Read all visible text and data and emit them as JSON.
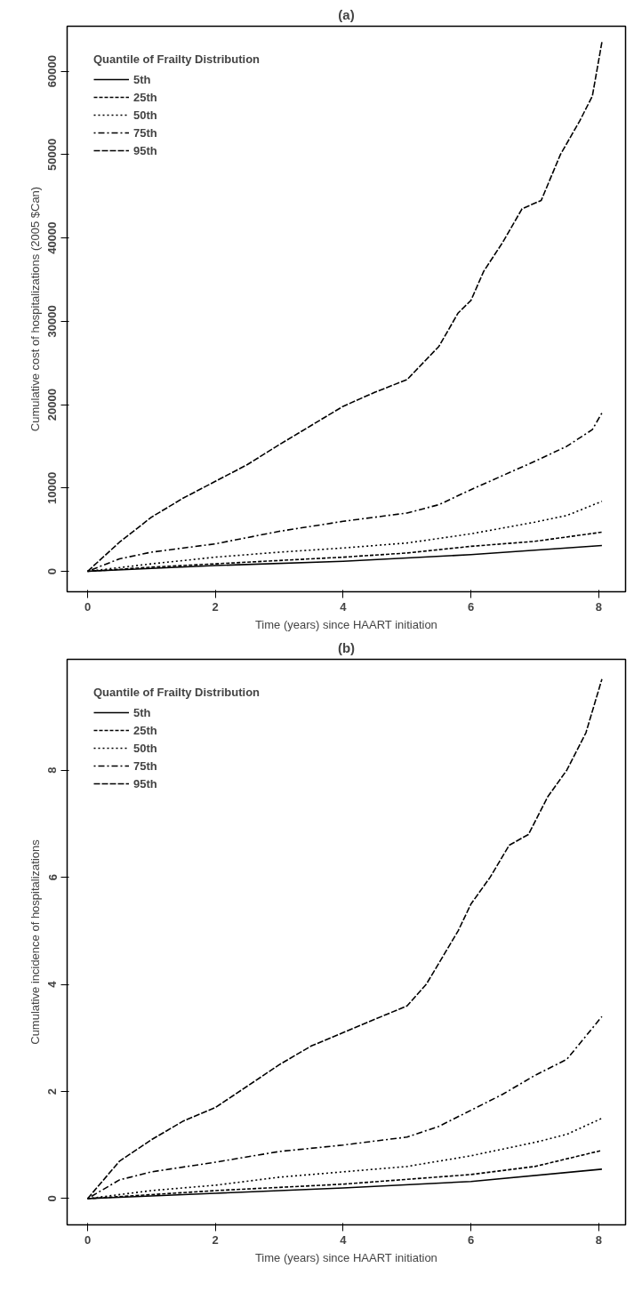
{
  "chart_data": [
    {
      "type": "line",
      "title": "(a)",
      "xlabel": "Time (years) since HAART initiation",
      "ylabel": "Cumulative cost of hospitalizations (2005 $Can)",
      "legend_title": "Quantile of Frailty Distribution",
      "legend": "top left",
      "grid": false,
      "xlim": [
        -0.32,
        8.42
      ],
      "xticks": [
        0,
        2,
        4,
        6,
        8
      ],
      "ylim": [
        -2450,
        65400
      ],
      "yticks": [
        0,
        10000,
        20000,
        30000,
        40000,
        50000,
        60000
      ],
      "series": [
        {
          "name": "5th",
          "color": "#000000",
          "line_style": "solid",
          "x": [
            0,
            2,
            4,
            6,
            8.05
          ],
          "values": [
            0,
            700,
            1200,
            2000,
            3100
          ]
        },
        {
          "name": "25th",
          "color": "#000000",
          "line_style": "dashed",
          "x": [
            0,
            1,
            2,
            3,
            4,
            5,
            6,
            7,
            8.05
          ],
          "values": [
            0,
            500,
            900,
            1300,
            1700,
            2200,
            3000,
            3600,
            4700
          ]
        },
        {
          "name": "50th",
          "color": "#000000",
          "line_style": "dotted",
          "x": [
            0,
            1,
            2,
            3,
            4,
            5,
            6,
            7,
            7.5,
            8.05
          ],
          "values": [
            0,
            900,
            1700,
            2300,
            2800,
            3400,
            4500,
            5900,
            6700,
            8400
          ]
        },
        {
          "name": "75th",
          "color": "#000000",
          "line_style": "dotdash",
          "x": [
            0,
            0.5,
            1,
            2,
            3,
            4,
            5,
            5.5,
            6,
            6.5,
            7,
            7.5,
            7.9,
            8.05
          ],
          "values": [
            0,
            1500,
            2300,
            3300,
            4800,
            6000,
            7000,
            8000,
            9800,
            11500,
            13200,
            15000,
            17000,
            19000
          ]
        },
        {
          "name": "95th",
          "color": "#000000",
          "line_style": "longdash",
          "x": [
            0,
            0.5,
            1,
            1.5,
            2,
            2.5,
            3,
            3.5,
            4,
            4.5,
            5,
            5.5,
            5.8,
            6,
            6.2,
            6.5,
            6.8,
            7.1,
            7.4,
            7.7,
            7.9,
            8.05
          ],
          "values": [
            0,
            3500,
            6500,
            8800,
            10800,
            12800,
            15200,
            17500,
            19800,
            21500,
            23000,
            27000,
            31000,
            32500,
            36000,
            39500,
            43500,
            44500,
            50000,
            54000,
            57000,
            63500
          ]
        }
      ]
    },
    {
      "type": "line",
      "title": "(b)",
      "xlabel": "Time (years) since HAART initiation",
      "ylabel": "Cumulative incidence of hospitalizations",
      "legend_title": "Quantile of Frailty Distribution",
      "legend": "top left",
      "grid": false,
      "xlim": [
        -0.32,
        8.42
      ],
      "xticks": [
        0,
        2,
        4,
        6,
        8
      ],
      "ylim": [
        -0.49,
        10.07
      ],
      "yticks": [
        0,
        2,
        4,
        6,
        8
      ],
      "series": [
        {
          "name": "5th",
          "color": "#000000",
          "line_style": "solid",
          "x": [
            0,
            2,
            4,
            6,
            8.05
          ],
          "values": [
            0,
            0.1,
            0.2,
            0.32,
            0.55
          ]
        },
        {
          "name": "25th",
          "color": "#000000",
          "line_style": "dashed",
          "x": [
            0,
            2,
            4,
            6,
            7,
            8.05
          ],
          "values": [
            0,
            0.15,
            0.27,
            0.45,
            0.6,
            0.9
          ]
        },
        {
          "name": "50th",
          "color": "#000000",
          "line_style": "dotted",
          "x": [
            0,
            1,
            2,
            3,
            4,
            5,
            6,
            7,
            7.5,
            8.05
          ],
          "values": [
            0,
            0.15,
            0.25,
            0.4,
            0.5,
            0.6,
            0.8,
            1.05,
            1.2,
            1.5
          ]
        },
        {
          "name": "75th",
          "color": "#000000",
          "line_style": "dotdash",
          "x": [
            0,
            0.5,
            1,
            2,
            3,
            4,
            5,
            5.5,
            6,
            6.5,
            7,
            7.5,
            8.05
          ],
          "values": [
            0,
            0.35,
            0.5,
            0.68,
            0.88,
            1.0,
            1.15,
            1.35,
            1.65,
            1.95,
            2.3,
            2.6,
            3.4
          ]
        },
        {
          "name": "95th",
          "color": "#000000",
          "line_style": "longdash",
          "x": [
            0,
            0.5,
            1,
            1.5,
            2,
            2.5,
            3,
            3.5,
            4,
            4.5,
            5,
            5.3,
            5.6,
            5.8,
            6,
            6.3,
            6.6,
            6.9,
            7.2,
            7.5,
            7.8,
            8.05
          ],
          "values": [
            0,
            0.7,
            1.1,
            1.45,
            1.7,
            2.1,
            2.5,
            2.85,
            3.1,
            3.35,
            3.6,
            4.0,
            4.6,
            5.0,
            5.5,
            6.0,
            6.6,
            6.8,
            7.5,
            8.0,
            8.7,
            9.7
          ]
        }
      ]
    }
  ]
}
